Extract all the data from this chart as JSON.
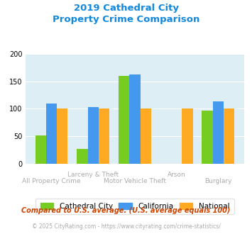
{
  "title_line1": "2019 Cathedral City",
  "title_line2": "Property Crime Comparison",
  "categories": [
    "All Property Crime",
    "Larceny & Theft",
    "Motor Vehicle Theft",
    "Arson",
    "Burglary"
  ],
  "cathedral_city": [
    52,
    27,
    160,
    0,
    97
  ],
  "california": [
    110,
    103,
    163,
    0,
    113
  ],
  "national": [
    100,
    100,
    100,
    100,
    100
  ],
  "bar_colors": {
    "cathedral_city": "#77cc22",
    "california": "#4499ee",
    "national": "#ffaa22"
  },
  "ylim": [
    0,
    200
  ],
  "yticks": [
    0,
    50,
    100,
    150,
    200
  ],
  "bg_color": "#ddeef5",
  "legend_labels": [
    "Cathedral City",
    "California",
    "National"
  ],
  "footnote1": "Compared to U.S. average. (U.S. average equals 100)",
  "footnote2": "© 2025 CityRating.com - https://www.cityrating.com/crime-statistics/",
  "title_color": "#1188dd",
  "footnote1_color": "#cc4400",
  "footnote2_color": "#aaaaaa",
  "label_color": "#aaaaaa",
  "top_labels": [
    [
      1,
      "Larceny & Theft"
    ],
    [
      3,
      "Arson"
    ]
  ],
  "bottom_labels": [
    [
      0,
      "All Property Crime"
    ],
    [
      2,
      "Motor Vehicle Theft"
    ],
    [
      4,
      "Burglary"
    ]
  ]
}
